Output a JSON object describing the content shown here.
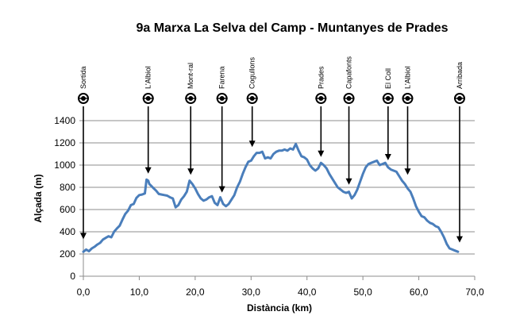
{
  "chart_data": {
    "type": "line",
    "title": "9a Marxa La Selva del Camp - Muntanyes de Prades",
    "xlabel": "Distància (km)",
    "ylabel": "Alçada (m)",
    "xlim": [
      0,
      70
    ],
    "ylim": [
      0,
      1400
    ],
    "x_ticks": [
      "0,0",
      "10,0",
      "20,0",
      "30,0",
      "40,0",
      "50,0",
      "60,0",
      "70,0"
    ],
    "y_ticks": [
      "0",
      "200",
      "400",
      "600",
      "800",
      "1000",
      "1200",
      "1400"
    ],
    "grid": "horizontal",
    "series": [
      {
        "color": "#4a7ebb",
        "x": [
          0,
          0.5,
          1,
          1.5,
          2,
          2.5,
          3,
          3.5,
          4,
          4.5,
          5,
          5.5,
          6,
          6.5,
          7,
          7.5,
          8,
          8.5,
          9,
          9.5,
          10,
          10.5,
          11,
          11.3,
          11.6,
          11.8,
          12.2,
          12.6,
          13,
          13.5,
          14,
          14.5,
          15,
          15.5,
          16,
          16.5,
          17,
          17.5,
          18,
          18.5,
          19,
          19.5,
          20,
          20.5,
          21,
          21.5,
          22,
          22.5,
          23,
          23.5,
          24,
          24.5,
          25,
          25.5,
          26,
          26.5,
          27,
          27.5,
          28,
          28.5,
          29,
          29.5,
          30,
          30.5,
          31,
          31.5,
          32,
          32.5,
          33,
          33.5,
          34,
          34.5,
          35,
          35.5,
          36,
          36.5,
          37,
          37.5,
          38,
          38.5,
          39,
          39.5,
          40,
          40.5,
          41,
          41.5,
          42,
          42.5,
          43,
          43.5,
          44,
          44.5,
          45,
          45.5,
          46,
          46.5,
          47,
          47.5,
          48,
          48.5,
          49,
          49.5,
          50,
          50.5,
          51,
          51.5,
          52,
          52.5,
          53,
          53.5,
          54,
          54.5,
          55,
          55.5,
          56,
          56.5,
          57,
          57.5,
          58,
          58.5,
          59,
          59.5,
          60,
          60.5,
          61,
          61.5,
          62,
          62.5,
          63,
          63.5,
          64,
          64.5,
          65,
          65.5,
          66,
          66.5,
          67
        ],
        "y": [
          220,
          240,
          225,
          250,
          265,
          285,
          300,
          330,
          345,
          360,
          350,
          400,
          430,
          455,
          510,
          560,
          590,
          640,
          650,
          705,
          730,
          735,
          745,
          870,
          860,
          830,
          810,
          790,
          770,
          740,
          735,
          730,
          725,
          710,
          700,
          620,
          640,
          690,
          720,
          760,
          860,
          830,
          790,
          740,
          700,
          680,
          690,
          710,
          720,
          660,
          640,
          710,
          650,
          630,
          650,
          690,
          730,
          800,
          850,
          920,
          980,
          1030,
          1040,
          1080,
          1110,
          1110,
          1120,
          1060,
          1070,
          1060,
          1100,
          1120,
          1130,
          1130,
          1140,
          1130,
          1150,
          1140,
          1190,
          1130,
          1080,
          1070,
          1050,
          1000,
          970,
          950,
          970,
          1020,
          1000,
          970,
          920,
          880,
          840,
          800,
          780,
          760,
          750,
          760,
          700,
          730,
          780,
          850,
          920,
          980,
          1010,
          1020,
          1030,
          1040,
          1000,
          1010,
          1020,
          980,
          960,
          950,
          940,
          900,
          860,
          830,
          790,
          760,
          700,
          630,
          580,
          540,
          530,
          500,
          480,
          470,
          450,
          440,
          400,
          350,
          290,
          250,
          240,
          230,
          220
        ]
      }
    ],
    "waypoints": [
      {
        "label": "Sortida",
        "x": 0,
        "arrow_to_y": 340
      },
      {
        "label": "L'Albiol",
        "x": 11.6,
        "arrow_to_y": 930
      },
      {
        "label": "Mont-ral",
        "x": 19.2,
        "arrow_to_y": 920
      },
      {
        "label": "Farena",
        "x": 24.8,
        "arrow_to_y": 760
      },
      {
        "label": "Cogullons",
        "x": 30.2,
        "arrow_to_y": 1170
      },
      {
        "label": "Prades",
        "x": 42.5,
        "arrow_to_y": 1080
      },
      {
        "label": "Capafonts",
        "x": 47.5,
        "arrow_to_y": 830
      },
      {
        "label": "El Coll",
        "x": 54.5,
        "arrow_to_y": 1050
      },
      {
        "label": "L'Albiol",
        "x": 58,
        "arrow_to_y": 920
      },
      {
        "label": "Arribada",
        "x": 67.3,
        "arrow_to_y": 310
      }
    ],
    "waypoint_marker": "ABC"
  }
}
